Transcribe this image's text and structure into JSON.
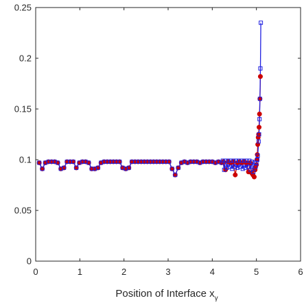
{
  "chart_data": {
    "type": "line",
    "title": "",
    "xlabel": "Position of Interface x",
    "xlabel_subscript": "γ",
    "ylabel": "",
    "xlim": [
      0,
      6
    ],
    "ylim": [
      0,
      0.25
    ],
    "xticks": [
      0,
      1,
      2,
      3,
      4,
      5,
      6
    ],
    "yticks": [
      0,
      0.05,
      0.1,
      0.15,
      0.2,
      0.25
    ],
    "xtick_labels": [
      "0",
      "1",
      "2",
      "3",
      "4",
      "5",
      "6"
    ],
    "ytick_labels": [
      "0",
      "0.05",
      "0.1",
      "0.15",
      "0.2",
      "0.25"
    ],
    "grid": false,
    "series": [
      {
        "color": "#cc0000",
        "marker": "circle",
        "points": [
          [
            0.08,
            0.097
          ],
          [
            0.15,
            0.091
          ],
          [
            0.22,
            0.097
          ],
          [
            0.29,
            0.098
          ],
          [
            0.36,
            0.098
          ],
          [
            0.43,
            0.098
          ],
          [
            0.5,
            0.097
          ],
          [
            0.57,
            0.091
          ],
          [
            0.64,
            0.092
          ],
          [
            0.71,
            0.098
          ],
          [
            0.78,
            0.098
          ],
          [
            0.85,
            0.098
          ],
          [
            0.92,
            0.092
          ],
          [
            0.99,
            0.097
          ],
          [
            1.06,
            0.098
          ],
          [
            1.13,
            0.098
          ],
          [
            1.2,
            0.097
          ],
          [
            1.27,
            0.091
          ],
          [
            1.34,
            0.091
          ],
          [
            1.41,
            0.092
          ],
          [
            1.48,
            0.097
          ],
          [
            1.55,
            0.098
          ],
          [
            1.62,
            0.098
          ],
          [
            1.69,
            0.098
          ],
          [
            1.76,
            0.098
          ],
          [
            1.83,
            0.098
          ],
          [
            1.9,
            0.098
          ],
          [
            1.97,
            0.092
          ],
          [
            2.04,
            0.091
          ],
          [
            2.11,
            0.092
          ],
          [
            2.18,
            0.098
          ],
          [
            2.25,
            0.098
          ],
          [
            2.32,
            0.098
          ],
          [
            2.39,
            0.098
          ],
          [
            2.46,
            0.098
          ],
          [
            2.53,
            0.098
          ],
          [
            2.6,
            0.098
          ],
          [
            2.67,
            0.098
          ],
          [
            2.74,
            0.098
          ],
          [
            2.81,
            0.098
          ],
          [
            2.88,
            0.098
          ],
          [
            2.95,
            0.098
          ],
          [
            3.02,
            0.098
          ],
          [
            3.09,
            0.091
          ],
          [
            3.16,
            0.085
          ],
          [
            3.23,
            0.092
          ],
          [
            3.3,
            0.097
          ],
          [
            3.37,
            0.098
          ],
          [
            3.44,
            0.097
          ],
          [
            3.51,
            0.098
          ],
          [
            3.58,
            0.098
          ],
          [
            3.65,
            0.098
          ],
          [
            3.72,
            0.097
          ],
          [
            3.79,
            0.098
          ],
          [
            3.86,
            0.098
          ],
          [
            3.93,
            0.098
          ],
          [
            4.0,
            0.098
          ],
          [
            4.07,
            0.097
          ],
          [
            4.14,
            0.098
          ],
          [
            4.21,
            0.097
          ],
          [
            4.25,
            0.098
          ],
          [
            4.3,
            0.09
          ],
          [
            4.36,
            0.098
          ],
          [
            4.42,
            0.097
          ],
          [
            4.47,
            0.098
          ],
          [
            4.52,
            0.085
          ],
          [
            4.57,
            0.097
          ],
          [
            4.62,
            0.098
          ],
          [
            4.67,
            0.097
          ],
          [
            4.72,
            0.098
          ],
          [
            4.77,
            0.097
          ],
          [
            4.82,
            0.088
          ],
          [
            4.86,
            0.097
          ],
          [
            4.89,
            0.087
          ],
          [
            4.92,
            0.085
          ],
          [
            4.95,
            0.083
          ],
          [
            4.97,
            0.09
          ],
          [
            4.98,
            0.093
          ],
          [
            5.0,
            0.095
          ],
          [
            5.01,
            0.1
          ],
          [
            5.02,
            0.105
          ],
          [
            5.03,
            0.115
          ],
          [
            5.04,
            0.122
          ],
          [
            5.05,
            0.125
          ],
          [
            5.06,
            0.132
          ],
          [
            5.07,
            0.145
          ],
          [
            5.08,
            0.16
          ],
          [
            5.09,
            0.182
          ]
        ]
      },
      {
        "color": "#1f1fe0",
        "marker": "square",
        "points": [
          [
            0.08,
            0.097
          ],
          [
            0.15,
            0.091
          ],
          [
            0.22,
            0.097
          ],
          [
            0.29,
            0.098
          ],
          [
            0.36,
            0.098
          ],
          [
            0.43,
            0.098
          ],
          [
            0.5,
            0.097
          ],
          [
            0.57,
            0.091
          ],
          [
            0.64,
            0.092
          ],
          [
            0.71,
            0.098
          ],
          [
            0.78,
            0.098
          ],
          [
            0.85,
            0.098
          ],
          [
            0.92,
            0.092
          ],
          [
            0.99,
            0.097
          ],
          [
            1.06,
            0.098
          ],
          [
            1.13,
            0.098
          ],
          [
            1.2,
            0.097
          ],
          [
            1.27,
            0.091
          ],
          [
            1.34,
            0.091
          ],
          [
            1.41,
            0.092
          ],
          [
            1.48,
            0.097
          ],
          [
            1.55,
            0.098
          ],
          [
            1.62,
            0.098
          ],
          [
            1.69,
            0.098
          ],
          [
            1.76,
            0.098
          ],
          [
            1.83,
            0.098
          ],
          [
            1.9,
            0.098
          ],
          [
            1.97,
            0.092
          ],
          [
            2.04,
            0.091
          ],
          [
            2.11,
            0.092
          ],
          [
            2.18,
            0.098
          ],
          [
            2.25,
            0.098
          ],
          [
            2.32,
            0.098
          ],
          [
            2.39,
            0.098
          ],
          [
            2.46,
            0.098
          ],
          [
            2.53,
            0.098
          ],
          [
            2.6,
            0.098
          ],
          [
            2.67,
            0.098
          ],
          [
            2.74,
            0.098
          ],
          [
            2.81,
            0.098
          ],
          [
            2.88,
            0.098
          ],
          [
            2.95,
            0.098
          ],
          [
            3.02,
            0.098
          ],
          [
            3.09,
            0.091
          ],
          [
            3.16,
            0.085
          ],
          [
            3.23,
            0.092
          ],
          [
            3.3,
            0.097
          ],
          [
            3.37,
            0.098
          ],
          [
            3.44,
            0.097
          ],
          [
            3.51,
            0.098
          ],
          [
            3.58,
            0.098
          ],
          [
            3.65,
            0.098
          ],
          [
            3.72,
            0.097
          ],
          [
            3.79,
            0.098
          ],
          [
            3.86,
            0.098
          ],
          [
            3.93,
            0.098
          ],
          [
            4.0,
            0.098
          ],
          [
            4.07,
            0.097
          ],
          [
            4.14,
            0.098
          ],
          [
            4.21,
            0.097
          ],
          [
            4.24,
            0.099
          ],
          [
            4.27,
            0.09
          ],
          [
            4.3,
            0.099
          ],
          [
            4.33,
            0.092
          ],
          [
            4.36,
            0.099
          ],
          [
            4.39,
            0.093
          ],
          [
            4.42,
            0.099
          ],
          [
            4.45,
            0.091
          ],
          [
            4.48,
            0.099
          ],
          [
            4.51,
            0.093
          ],
          [
            4.54,
            0.099
          ],
          [
            4.57,
            0.092
          ],
          [
            4.6,
            0.099
          ],
          [
            4.63,
            0.093
          ],
          [
            4.66,
            0.099
          ],
          [
            4.69,
            0.091
          ],
          [
            4.72,
            0.099
          ],
          [
            4.75,
            0.092
          ],
          [
            4.78,
            0.099
          ],
          [
            4.81,
            0.093
          ],
          [
            4.84,
            0.099
          ],
          [
            4.87,
            0.09
          ],
          [
            4.9,
            0.098
          ],
          [
            4.93,
            0.088
          ],
          [
            4.96,
            0.097
          ],
          [
            4.98,
            0.093
          ],
          [
            5.0,
            0.097
          ],
          [
            5.02,
            0.1
          ],
          [
            5.03,
            0.104
          ],
          [
            5.05,
            0.118
          ],
          [
            5.06,
            0.125
          ],
          [
            5.07,
            0.14
          ],
          [
            5.08,
            0.16
          ],
          [
            5.09,
            0.19
          ],
          [
            5.1,
            0.235
          ]
        ]
      }
    ]
  }
}
